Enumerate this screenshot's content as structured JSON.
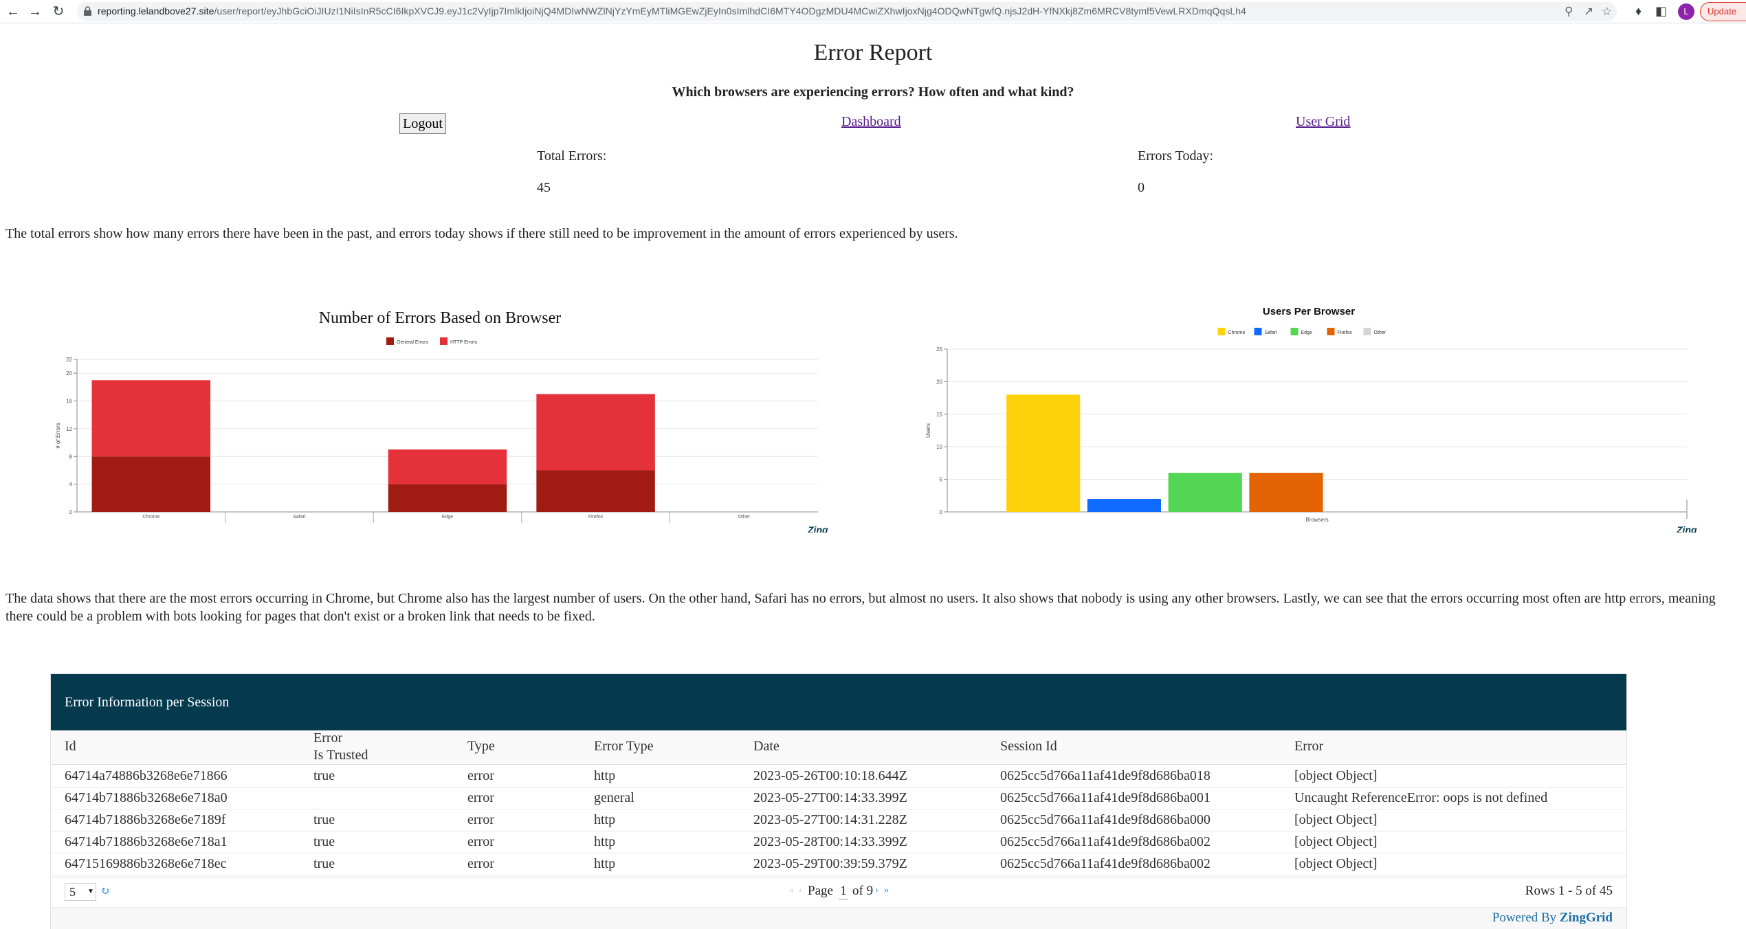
{
  "browser": {
    "url_host": "reporting.lelandbove27.site",
    "url_path": "/user/report/eyJhbGciOiJIUzI1NiIsInR5cCI6IkpXVCJ9.eyJ1c2VyIjp7ImlkIjoiNjQ4MDIwNWZlNjYzYmEyMTliMGEwZjEyIn0sImlhdCI6MTY4ODgzMDU4MCwiZXhwIjoxNjg4ODQwNTgwfQ.njsJ2dH-YfNXkj8Zm6MRCV8tymf5VewLRXDmqQqsLh4",
    "avatar_letter": "L",
    "update_label": "Update"
  },
  "header": {
    "title": "Error Report",
    "subtitle": "Which browsers are experiencing errors? How often and what kind?",
    "logout_label": "Logout",
    "dashboard_link": "Dashboard",
    "user_grid_link": "User Grid"
  },
  "stats": {
    "total_errors_label": "Total Errors:",
    "total_errors_value": "45",
    "errors_today_label": "Errors Today:",
    "errors_today_value": "0"
  },
  "paragraphs": {
    "intro": "The total errors show how many errors there have been in the past, and errors today shows if there still need to be improvement in the amount of errors experienced by users.",
    "analysis": "The data shows that there are the most errors occurring in Chrome, but Chrome also has the largest number of users. On the other hand, Safari has no errors, but almost no users. It also shows that nobody is using any other browsers. Lastly, we can see that the errors occurring most often are http errors, meaning there could be a problem with bots looking for pages that don't exist or a broken link that needs to be fixed."
  },
  "chart_data": [
    {
      "type": "bar",
      "stacked": true,
      "title": "Number of Errors Based on Browser",
      "xlabel": "",
      "ylabel": "# of Errors",
      "categories": [
        "Chrome",
        "Safari",
        "Edge",
        "Firefox",
        "Other"
      ],
      "series": [
        {
          "name": "General Errors",
          "color": "#a01c13",
          "values": [
            8,
            0,
            4,
            6,
            0
          ]
        },
        {
          "name": "HTTP Errors",
          "color": "#e5313a",
          "values": [
            11,
            0,
            5,
            11,
            0
          ]
        }
      ],
      "ylim": [
        0,
        22
      ],
      "yticks": [
        0,
        4,
        8,
        12,
        16,
        20,
        22
      ],
      "legend": "top-center",
      "grid": true,
      "watermark": "Zing"
    },
    {
      "type": "bar",
      "title": "Users Per Browser",
      "xlabel": "Browsers",
      "ylabel": "Users",
      "categories": [
        "Browsers"
      ],
      "series": [
        {
          "name": "Chrome",
          "color": "#fdd20a",
          "values": [
            18
          ]
        },
        {
          "name": "Safari",
          "color": "#0f6bff",
          "values": [
            2
          ]
        },
        {
          "name": "Edge",
          "color": "#53d653",
          "values": [
            6
          ]
        },
        {
          "name": "Firefox",
          "color": "#e46303",
          "values": [
            6
          ]
        },
        {
          "name": "Other",
          "color": "#d4d4d4",
          "values": [
            0
          ]
        }
      ],
      "ylim": [
        0,
        25
      ],
      "yticks": [
        0,
        5,
        10,
        15,
        20,
        25
      ],
      "legend": "top-center",
      "grid": true,
      "watermark": "Zing"
    }
  ],
  "grid": {
    "caption": "Error Information per Session",
    "columns": {
      "id": "Id",
      "trusted_line1": "Error",
      "trusted_line2": "Is Trusted",
      "type": "Type",
      "error_type": "Error Type",
      "date": "Date",
      "session": "Session Id",
      "error": "Error"
    },
    "rows": [
      {
        "id": "64714a74886b3268e6e71866",
        "trusted": "true",
        "type": "error",
        "error_type": "http",
        "date": "2023-05-26T00:10:18.644Z",
        "session": "0625cc5d766a11af41de9f8d686ba018",
        "error": "[object Object]"
      },
      {
        "id": "64714b71886b3268e6e718a0",
        "trusted": "",
        "type": "error",
        "error_type": "general",
        "date": "2023-05-27T00:14:33.399Z",
        "session": "0625cc5d766a11af41de9f8d686ba001",
        "error": "Uncaught ReferenceError: oops is not defined"
      },
      {
        "id": "64714b71886b3268e6e7189f",
        "trusted": "true",
        "type": "error",
        "error_type": "http",
        "date": "2023-05-27T00:14:31.228Z",
        "session": "0625cc5d766a11af41de9f8d686ba000",
        "error": "[object Object]"
      },
      {
        "id": "64714b71886b3268e6e718a1",
        "trusted": "true",
        "type": "error",
        "error_type": "http",
        "date": "2023-05-28T00:14:33.399Z",
        "session": "0625cc5d766a11af41de9f8d686ba002",
        "error": "[object Object]"
      },
      {
        "id": "64715169886b3268e6e718ec",
        "trusted": "true",
        "type": "error",
        "error_type": "http",
        "date": "2023-05-29T00:39:59.379Z",
        "session": "0625cc5d766a11af41de9f8d686ba002",
        "error": "[object Object]"
      }
    ],
    "page_size": "5",
    "page_label": "Page",
    "page_current": "1",
    "page_total": "of 9",
    "rows_info": "Rows 1 - 5 of 45",
    "powered_prefix": "Powered By",
    "powered_brand": "ZingGrid"
  },
  "colors": {
    "grid_caption_bg": "#053a4e",
    "link": "#551a8b",
    "pager_link": "#1e88e5"
  }
}
